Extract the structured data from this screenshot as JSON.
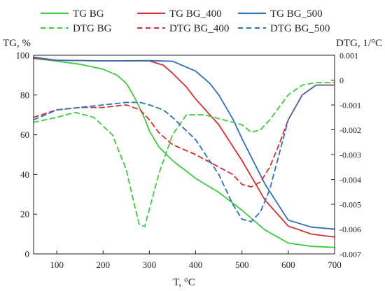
{
  "chart_data": {
    "type": "line",
    "xlabel": "T, °C",
    "ylabel": "TG, %",
    "y2label": "DTG, 1/°C",
    "xlim": [
      50,
      700
    ],
    "ylim": [
      0,
      100
    ],
    "y2lim": [
      -0.007,
      0.001
    ],
    "x_ticks": [
      100,
      200,
      300,
      400,
      500,
      600,
      700
    ],
    "y_ticks": [
      0,
      20,
      40,
      60,
      80,
      100
    ],
    "y2_ticks": [
      -0.007,
      -0.006,
      -0.005,
      -0.004,
      -0.003,
      -0.002,
      -0.001,
      0,
      0.001
    ],
    "grid": false,
    "legend_position": "top",
    "series": [
      {
        "name": "TG BG",
        "axis": "left",
        "color": "#3fc93f",
        "dash": "solid",
        "x": [
          50,
          100,
          150,
          200,
          230,
          250,
          270,
          290,
          300,
          320,
          350,
          400,
          450,
          500,
          550,
          600,
          650,
          700
        ],
        "y": [
          98.5,
          97,
          95.5,
          93,
          90,
          86,
          78,
          68,
          62,
          54,
          47,
          38,
          31,
          22,
          12,
          5.5,
          3.8,
          3.3
        ]
      },
      {
        "name": "TG BG_400",
        "axis": "left",
        "color": "#d32f2f",
        "dash": "solid",
        "x": [
          50,
          100,
          200,
          300,
          330,
          350,
          380,
          400,
          450,
          500,
          550,
          600,
          650,
          700
        ],
        "y": [
          98.5,
          97.5,
          97.2,
          97.2,
          95,
          91,
          84,
          78,
          65,
          47,
          27,
          14,
          10,
          8.5
        ]
      },
      {
        "name": "TG BG_500",
        "axis": "left",
        "color": "#2e6fba",
        "dash": "solid",
        "x": [
          50,
          100,
          200,
          300,
          350,
          400,
          430,
          450,
          480,
          500,
          550,
          600,
          650,
          700
        ],
        "y": [
          99,
          97.5,
          97.2,
          97.3,
          97,
          92,
          86,
          80,
          68,
          58,
          35,
          17,
          13.5,
          12.5
        ]
      },
      {
        "name": "DTG BG",
        "axis": "right",
        "color": "#3fc93f",
        "dash": "dashed",
        "x": [
          50,
          100,
          140,
          180,
          220,
          250,
          265,
          278,
          290,
          300,
          320,
          350,
          380,
          420,
          460,
          500,
          520,
          540,
          560,
          600,
          630,
          660,
          700
        ],
        "y": [
          -0.0017,
          -0.0015,
          -0.0013,
          -0.0015,
          -0.0022,
          -0.0036,
          -0.0048,
          -0.0058,
          -0.0059,
          -0.0052,
          -0.0038,
          -0.0022,
          -0.0014,
          -0.0014,
          -0.0016,
          -0.0018,
          -0.0021,
          -0.002,
          -0.0016,
          -0.0006,
          -0.0002,
          -0.0001,
          -0.0001
        ]
      },
      {
        "name": "DTG BG_400",
        "axis": "right",
        "color": "#d32f2f",
        "dash": "dashed",
        "x": [
          50,
          100,
          150,
          200,
          250,
          280,
          300,
          320,
          350,
          400,
          450,
          480,
          500,
          520,
          540,
          560,
          580,
          600,
          630,
          660,
          700
        ],
        "y": [
          -0.0015,
          -0.0012,
          -0.0011,
          -0.0011,
          -0.001,
          -0.0012,
          -0.0016,
          -0.0021,
          -0.0026,
          -0.003,
          -0.0035,
          -0.0038,
          -0.0042,
          -0.0043,
          -0.0041,
          -0.0035,
          -0.0026,
          -0.0016,
          -0.0006,
          -0.0002,
          -0.0002
        ]
      },
      {
        "name": "DTG BG_500",
        "axis": "right",
        "color": "#2e6fba",
        "dash": "dashed",
        "x": [
          50,
          100,
          150,
          200,
          250,
          280,
          300,
          330,
          350,
          400,
          450,
          480,
          500,
          520,
          540,
          560,
          580,
          600,
          630,
          660,
          700
        ],
        "y": [
          -0.0016,
          -0.0012,
          -0.0011,
          -0.001,
          -0.0009,
          -0.0009,
          -0.001,
          -0.0012,
          -0.0015,
          -0.0024,
          -0.0038,
          -0.005,
          -0.0056,
          -0.0057,
          -0.0053,
          -0.0044,
          -0.003,
          -0.0016,
          -0.0006,
          -0.0002,
          -0.0002
        ]
      }
    ]
  }
}
